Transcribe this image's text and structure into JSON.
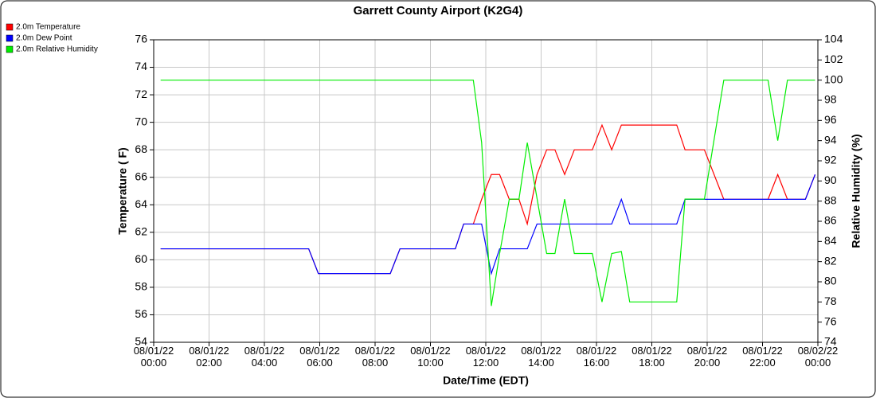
{
  "chart_data": {
    "type": "line",
    "title": "Garrett County Airport (K2G4)",
    "x_label": "Date/Time (EDT)",
    "y_label": "Temperature ( F)",
    "y2_label": "Relative Humidity (%)",
    "x": [
      "08/01/22 00:15",
      "08/01/22 05:36",
      "08/01/22 05:57",
      "08/01/22 08:33",
      "08/01/22 08:54",
      "08/01/22 10:54",
      "08/01/22 11:12",
      "08/01/22 11:33",
      "08/01/22 11:51",
      "08/01/22 12:12",
      "08/01/22 12:30",
      "08/01/22 12:51",
      "08/01/22 13:12",
      "08/01/22 13:30",
      "08/01/22 13:51",
      "08/01/22 14:12",
      "08/01/22 14:30",
      "08/01/22 14:51",
      "08/01/22 15:12",
      "08/01/22 15:51",
      "08/01/22 16:12",
      "08/01/22 16:33",
      "08/01/22 16:54",
      "08/01/22 17:12",
      "08/01/22 18:54",
      "08/01/22 19:12",
      "08/01/22 19:54",
      "08/01/22 20:36",
      "08/01/22 22:12",
      "08/01/22 22:33",
      "08/01/22 22:54",
      "08/01/22 23:33",
      "08/01/22 23:54"
    ],
    "series": [
      {
        "name": "2.0m Temperature",
        "color": "#ff0000",
        "values": [
          60.8,
          60.8,
          59.0,
          59.0,
          60.8,
          60.8,
          62.6,
          62.6,
          64.4,
          66.2,
          66.2,
          64.4,
          64.4,
          62.6,
          66.2,
          68.0,
          68.0,
          66.2,
          68.0,
          68.0,
          69.8,
          68.0,
          69.8,
          69.8,
          69.8,
          68.0,
          68.0,
          64.4,
          64.4,
          66.2,
          64.4,
          64.4,
          66.2
        ]
      },
      {
        "name": "2.0m Dew Point",
        "color": "#0000ff",
        "values": [
          60.8,
          60.8,
          59.0,
          59.0,
          60.8,
          60.8,
          62.6,
          62.6,
          62.6,
          59.0,
          60.8,
          60.8,
          60.8,
          60.8,
          62.6,
          62.6,
          62.6,
          62.6,
          62.6,
          62.6,
          62.6,
          62.6,
          64.4,
          62.6,
          62.6,
          64.4,
          64.4,
          64.4,
          64.4,
          64.4,
          64.4,
          64.4,
          66.2
        ]
      },
      {
        "name": "2.0m Relative Humidity",
        "color": "#00ee00",
        "axis": "y2",
        "values": [
          100,
          100,
          100,
          100,
          100,
          100,
          100,
          100,
          93.8,
          77.6,
          82.8,
          88.2,
          88.2,
          93.8,
          88.3,
          82.8,
          82.8,
          88.2,
          82.8,
          82.8,
          78,
          82.8,
          83,
          78,
          78,
          88.2,
          88.2,
          100,
          100,
          94,
          100,
          100,
          100
        ]
      }
    ],
    "xlim": [
      "08/01/22 00:00",
      "08/02/22 00:00"
    ],
    "xticks": [
      "08/01/22 00:00",
      "08/01/22 02:00",
      "08/01/22 04:00",
      "08/01/22 06:00",
      "08/01/22 08:00",
      "08/01/22 10:00",
      "08/01/22 12:00",
      "08/01/22 14:00",
      "08/01/22 16:00",
      "08/01/22 18:00",
      "08/01/22 20:00",
      "08/01/22 22:00",
      "08/02/22 00:00"
    ],
    "ylim": [
      54,
      76
    ],
    "yticks": [
      54,
      56,
      58,
      60,
      62,
      64,
      66,
      68,
      70,
      72,
      74,
      76
    ],
    "y2lim": [
      74,
      104
    ],
    "y2ticks": [
      74,
      76,
      78,
      80,
      82,
      84,
      86,
      88,
      90,
      92,
      94,
      96,
      98,
      100,
      102,
      104
    ],
    "grid": true,
    "legend": "top-left"
  }
}
